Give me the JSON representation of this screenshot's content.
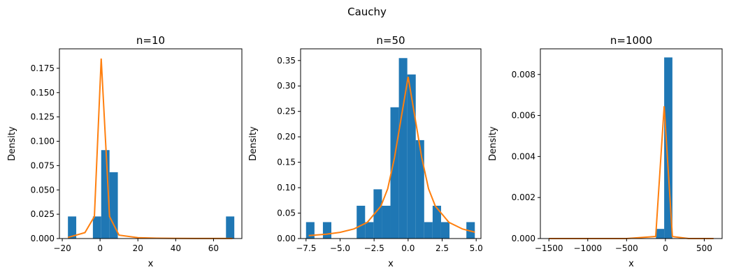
{
  "suptitle": "Cauchy",
  "colors": {
    "bar": "#1f77b4",
    "line": "#ff7f0e",
    "axis": "#000000"
  },
  "chart_data": [
    {
      "type": "bar",
      "title": "n=10",
      "xlabel": "x",
      "ylabel": "Density",
      "xlim": [
        -21.5,
        75
      ],
      "ylim": [
        0,
        0.195
      ],
      "xticks": [
        -20,
        0,
        20,
        40,
        60
      ],
      "xtick_labels": [
        "−20",
        "0",
        "20",
        "40",
        "60"
      ],
      "yticks": [
        0,
        0.025,
        0.05,
        0.075,
        0.1,
        0.125,
        0.15,
        0.175
      ],
      "ytick_labels": [
        "0.000",
        "0.025",
        "0.050",
        "0.075",
        "0.100",
        "0.125",
        "0.150",
        "0.175"
      ],
      "histogram": {
        "bin_edges": [
          -17.0,
          -12.6,
          -8.2,
          -3.8,
          0.6,
          5.0,
          9.4,
          13.8,
          18.2,
          22.6,
          27.0,
          31.4,
          35.8,
          40.2,
          44.6,
          49.0,
          53.4,
          57.8,
          62.2,
          66.6,
          71.0
        ],
        "density": [
          0.0227,
          0,
          0,
          0.0227,
          0.0909,
          0.0682,
          0,
          0,
          0,
          0,
          0,
          0,
          0,
          0,
          0,
          0,
          0,
          0,
          0,
          0.0227
        ]
      },
      "pdf_line": {
        "x": [
          -17,
          -8,
          -3,
          0.6,
          5,
          10,
          20,
          30,
          40,
          50,
          60,
          70
        ],
        "y": [
          0.0011,
          0.0061,
          0.0227,
          0.185,
          0.0227,
          0.0035,
          0.0009,
          0.0004,
          0.0002,
          0.0001,
          0.0001,
          0.0001
        ]
      }
    },
    {
      "type": "bar",
      "title": "n=50",
      "xlabel": "x",
      "ylabel": "Density",
      "xlim": [
        -7.9,
        5.35
      ],
      "ylim": [
        0,
        0.373
      ],
      "xticks": [
        -7.5,
        -5.0,
        -2.5,
        0.0,
        2.5,
        5.0
      ],
      "xtick_labels": [
        "−7.5",
        "−5.0",
        "−2.5",
        "0.0",
        "2.5",
        "5.0"
      ],
      "yticks": [
        0,
        0.05,
        0.1,
        0.15,
        0.2,
        0.25,
        0.3,
        0.35
      ],
      "ytick_labels": [
        "0.00",
        "0.05",
        "0.10",
        "0.15",
        "0.20",
        "0.25",
        "0.30",
        "0.35"
      ],
      "histogram": {
        "bin_edges": [
          -7.5,
          -6.88,
          -6.26,
          -5.64,
          -5.02,
          -4.4,
          -3.78,
          -3.16,
          -2.54,
          -1.92,
          -1.3,
          -0.68,
          -0.06,
          0.56,
          1.18,
          1.8,
          2.42,
          3.04,
          3.66,
          4.28,
          4.9
        ],
        "density": [
          0.0323,
          0,
          0.0323,
          0,
          0,
          0,
          0.0645,
          0.0323,
          0.0968,
          0.0645,
          0.2581,
          0.3548,
          0.3226,
          0.1935,
          0.0323,
          0.0645,
          0.0323,
          0,
          0,
          0.0323
        ]
      },
      "pdf_line": {
        "x": [
          -7.3,
          -6,
          -5,
          -4,
          -3,
          -2,
          -1.5,
          -1,
          -0.5,
          0,
          0.5,
          1,
          1.5,
          2,
          3,
          4,
          4.9
        ],
        "y": [
          0.0058,
          0.0085,
          0.0122,
          0.0187,
          0.0318,
          0.0637,
          0.0979,
          0.1592,
          0.2387,
          0.318,
          0.2387,
          0.1592,
          0.0979,
          0.0637,
          0.0318,
          0.0187,
          0.0125
        ]
      }
    },
    {
      "type": "bar",
      "title": "n=1000",
      "xlabel": "x",
      "ylabel": "Density",
      "xlim": [
        -1610,
        730
      ],
      "ylim": [
        0,
        0.00925
      ],
      "xticks": [
        -1500,
        -1000,
        -500,
        0,
        500
      ],
      "xtick_labels": [
        "−1500",
        "−1000",
        "−500",
        "0",
        "500"
      ],
      "yticks": [
        0,
        0.002,
        0.004,
        0.006,
        0.008
      ],
      "ytick_labels": [
        "0.000",
        "0.002",
        "0.004",
        "0.006",
        "0.008"
      ],
      "histogram": {
        "bin_edges": [
          -1500,
          -1394,
          -1288,
          -1182,
          -1076,
          -970,
          -864,
          -758,
          -652,
          -546,
          -440,
          -334,
          -228,
          -122,
          -16,
          90,
          196,
          302,
          408,
          514,
          620
        ],
        "density": [
          0,
          0,
          0,
          0,
          0,
          0,
          0,
          0,
          0,
          0,
          0,
          0,
          0,
          0.00047,
          0.00883,
          0,
          0,
          0,
          0,
          0
        ]
      },
      "pdf_line": {
        "x": [
          -1500,
          -1000,
          -500,
          -125,
          -16,
          90,
          300,
          620
        ],
        "y": [
          0,
          0,
          0,
          0.0001,
          0.00645,
          0.0001,
          0,
          0
        ]
      }
    }
  ]
}
